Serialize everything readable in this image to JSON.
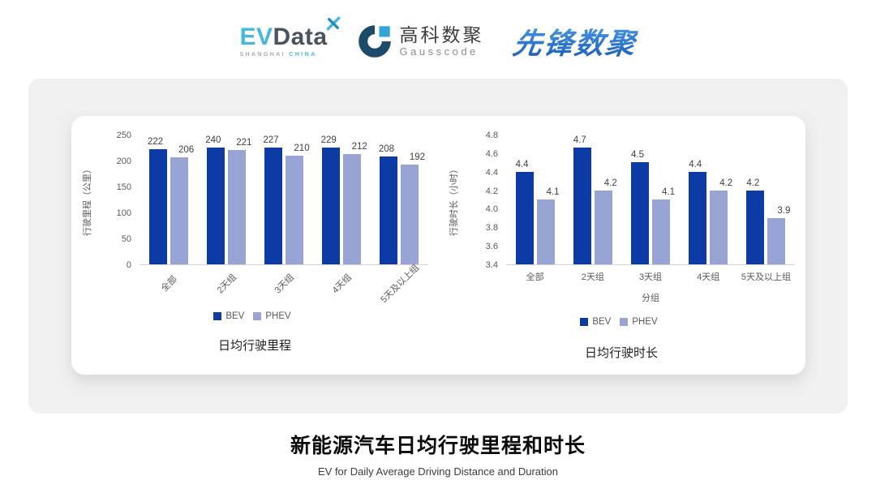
{
  "header": {
    "logos": {
      "evdata": {
        "ev": "EV",
        "data_word": "Data",
        "sub_left": "SHANGHAI",
        "sub_right": "CHINA"
      },
      "gausscode": {
        "cn": "高科数聚",
        "en": "Gausscode"
      },
      "pioneer": {
        "text": "先锋数聚"
      }
    }
  },
  "colors": {
    "bev": "#0c3ba6",
    "phev": "#98a4d4",
    "axis_text": "#595959",
    "value_label": "#404040",
    "baseline": "#d4d4d4",
    "card_bg": "#f0f0f0",
    "evdata_blue": "#45b8dc",
    "evdata_dark": "#4a5461",
    "gausscode_dark": "#1d4a68",
    "gausscode_light": "#33a5d6",
    "pioneer_blue": "#2a78d2"
  },
  "chart_data": [
    {
      "type": "bar",
      "title": "日均行驶里程",
      "categories": [
        "全部",
        "2天组",
        "3天组",
        "4天组",
        "5天及以上组"
      ],
      "series": [
        {
          "name": "BEV",
          "values": [
            222,
            240,
            227,
            229,
            208
          ]
        },
        {
          "name": "PHEV",
          "values": [
            206,
            221,
            210,
            212,
            192
          ]
        }
      ],
      "xlabel": "",
      "ylabel": "行驶里程（公里）",
      "ylim": [
        0,
        250
      ],
      "ytick_step": 50,
      "tick_decimals": 0,
      "value_decimals": 0,
      "x_label_rotation": 45,
      "grid": false,
      "legend_position": "bottom"
    },
    {
      "type": "bar",
      "title": "日均行驶时长",
      "categories": [
        "全部",
        "2天组",
        "3天组",
        "4天组",
        "5天及以上组"
      ],
      "series": [
        {
          "name": "BEV",
          "values": [
            4.4,
            4.7,
            4.5,
            4.4,
            4.2
          ]
        },
        {
          "name": "PHEV",
          "values": [
            4.1,
            4.2,
            4.1,
            4.2,
            3.9
          ]
        }
      ],
      "xlabel": "分组",
      "ylabel": "行驶时长（小时）",
      "ylim": [
        3.4,
        4.8
      ],
      "ytick_step": 0.2,
      "tick_decimals": 1,
      "value_decimals": 1,
      "x_label_rotation": 0,
      "grid": false,
      "legend_position": "bottom"
    }
  ],
  "footer": {
    "title": "新能源汽车日均行驶里程和时长",
    "subtitle": "EV for Daily Average Driving Distance and Duration"
  }
}
